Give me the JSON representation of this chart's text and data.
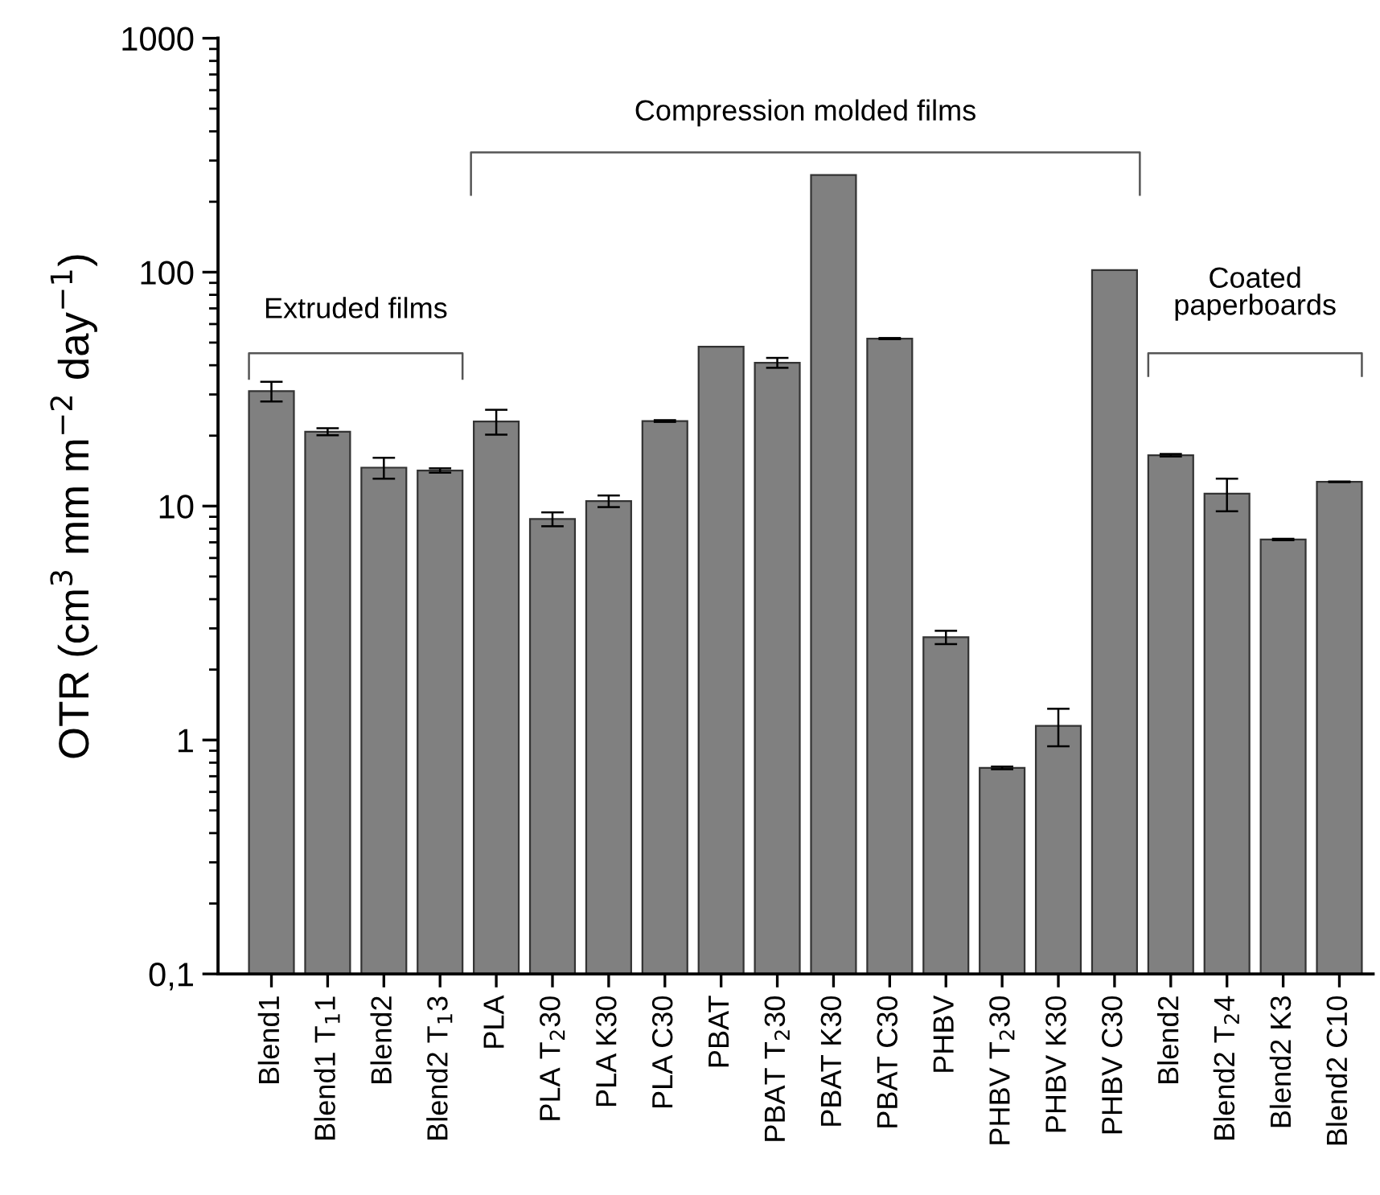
{
  "chart_data": {
    "type": "bar",
    "ylabel": "OTR (cm$^{3}$ mm m$^{−2}$ day$^{−1}$)",
    "categories": [
      "Blend1",
      "Blend1 T$_{1}$1",
      "Blend2",
      "Blend2 T$_{1}$3",
      "PLA",
      "PLA T$_{2}$30",
      "PLA K30",
      "PLA C30",
      "PBAT",
      "PBAT T$_{2}$30",
      "PBAT K30",
      "PBAT C30",
      "PHBV",
      "PHBV T$_{2}$30",
      "PHBV K30",
      "PHBV C30",
      "Blend2",
      "Blend2 T$_{2}$4",
      "Blend2 K3",
      "Blend2 C10"
    ],
    "values": [
      31,
      20.8,
      14.6,
      14.2,
      23,
      8.8,
      10.5,
      23.1,
      48,
      41,
      260,
      52,
      2.75,
      0.76,
      1.15,
      102,
      16.5,
      11.3,
      7.2,
      12.7
    ],
    "errors": [
      3,
      0.7,
      1.5,
      0.3,
      2.8,
      0.6,
      0.6,
      0.2,
      null,
      2,
      null,
      0.3,
      0.18,
      0.01,
      0.21,
      null,
      0.2,
      1.8,
      0.05,
      0.05
    ],
    "color": "#808080",
    "log": true,
    "ylim": [
      0.1,
      1000
    ],
    "yticks": [
      {
        "value": 0.1,
        "label": "0,1"
      },
      1,
      10,
      100,
      1000
    ],
    "grid": false,
    "annotations": [
      "Extruded films",
      "Compression molded films",
      "Coated\npaperboards"
    ]
  }
}
